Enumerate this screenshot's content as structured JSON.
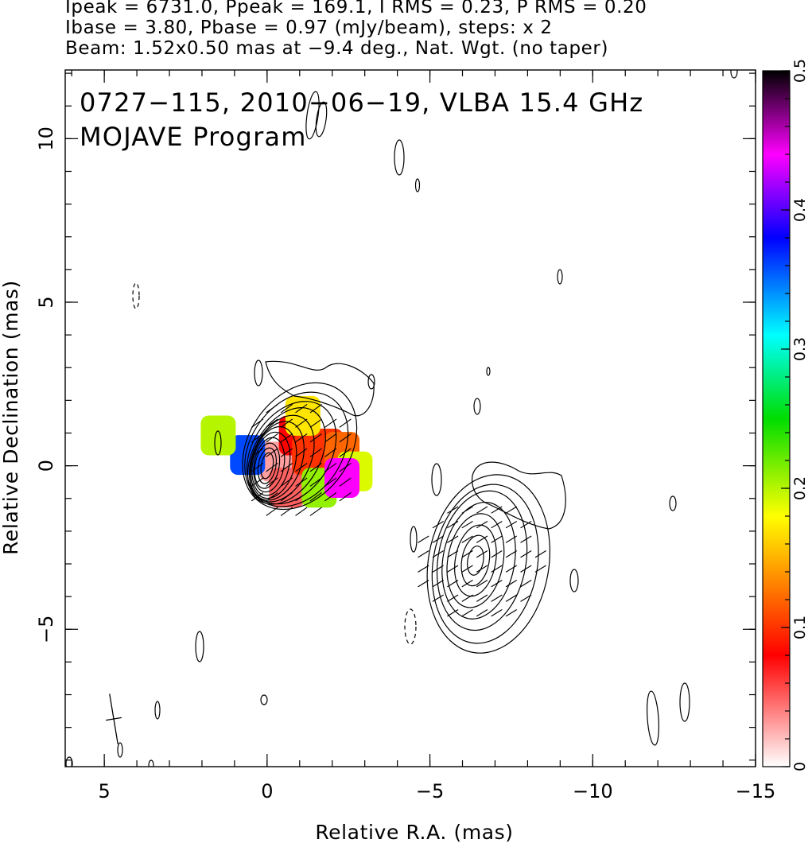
{
  "header": {
    "line1": "Ipeak = 6731.0, Ppeak = 169.1, I RMS = 0.23, P RMS = 0.20",
    "line2": "Ibase = 3.80, Pbase = 0.97 (mJy/beam), steps: x 2",
    "line3": "Beam: 1.52x0.50 mas at −9.4 deg., Nat. Wgt. (no taper)"
  },
  "chart_data": {
    "type": "heatmap",
    "title": "0727−115, 2010−06−19, VLBA 15.4 GHz",
    "subtitle": "MOJAVE Program",
    "xlabel": "Relative R.A. (mas)",
    "ylabel": "Relative Declination (mas)",
    "xlim": [
      6.2,
      -15.0
    ],
    "ylim": [
      -9.2,
      12.1
    ],
    "x_ticks": [
      {
        "value": 5,
        "label": "5"
      },
      {
        "value": 0,
        "label": "0"
      },
      {
        "value": -5,
        "label": "−5"
      },
      {
        "value": -10,
        "label": "−10"
      },
      {
        "value": -15,
        "label": "−15"
      }
    ],
    "y_ticks": [
      {
        "value": 10,
        "label": "10"
      },
      {
        "value": 5,
        "label": "5"
      },
      {
        "value": 0,
        "label": "0"
      },
      {
        "value": -5,
        "label": "−5"
      }
    ],
    "colorbar": {
      "range": [
        0,
        0.5
      ],
      "ticks": [
        {
          "value": 0,
          "label": "0"
        },
        {
          "value": 0.1,
          "label": "0.1"
        },
        {
          "value": 0.2,
          "label": "0.2"
        },
        {
          "value": 0.3,
          "label": "0.3"
        },
        {
          "value": 0.4,
          "label": "0.4"
        },
        {
          "value": 0.5,
          "label": "0.5"
        }
      ],
      "colormap": [
        "#ffffff",
        "#ff0000",
        "#ff8c00",
        "#ffff00",
        "#00dd00",
        "#00ffff",
        "#0000ff",
        "#ff00ff",
        "#000000"
      ]
    },
    "intensity_contours": [
      {
        "component": "core",
        "x": 0.0,
        "y": 0.0,
        "levels": [
          {
            "rx": 2.1,
            "ry": 1.55,
            "angle": 35,
            "dx": -1.0,
            "dy": 0.6
          },
          {
            "rx": 1.9,
            "ry": 1.4,
            "angle": 35,
            "dx": -0.9,
            "dy": 0.5
          },
          {
            "rx": 1.7,
            "ry": 1.2,
            "angle": 33,
            "dx": -0.75,
            "dy": 0.4
          },
          {
            "rx": 1.6,
            "ry": 1.02,
            "angle": 30,
            "dx": -0.6,
            "dy": 0.3
          },
          {
            "rx": 1.4,
            "ry": 0.88,
            "angle": 25,
            "dx": -0.45,
            "dy": 0.22
          },
          {
            "rx": 1.25,
            "ry": 0.76,
            "angle": 20,
            "dx": -0.3,
            "dy": 0.15
          },
          {
            "rx": 1.12,
            "ry": 0.66,
            "angle": 15,
            "dx": -0.2,
            "dy": 0.1
          },
          {
            "rx": 0.98,
            "ry": 0.56,
            "angle": 12,
            "dx": -0.12,
            "dy": 0.06
          },
          {
            "rx": 0.84,
            "ry": 0.46,
            "angle": 10,
            "dx": -0.06,
            "dy": 0.03
          },
          {
            "rx": 0.7,
            "ry": 0.37,
            "angle": 10,
            "dx": 0.0,
            "dy": 0.0
          },
          {
            "rx": 0.55,
            "ry": 0.27,
            "angle": 10,
            "dx": 0.0,
            "dy": 0.0
          },
          {
            "rx": 0.4,
            "ry": 0.18,
            "angle": 10,
            "dx": 0.0,
            "dy": 0.0
          }
        ]
      },
      {
        "component": "jet",
        "x": -6.4,
        "y": -2.9,
        "levels": [
          {
            "rx": 2.75,
            "ry": 1.85,
            "angle": 10,
            "dx": -0.4,
            "dy": -0.1
          },
          {
            "rx": 2.45,
            "ry": 1.6,
            "angle": 10,
            "dx": -0.3,
            "dy": -0.1
          },
          {
            "rx": 2.15,
            "ry": 1.35,
            "angle": 10,
            "dx": -0.2,
            "dy": 0.0
          },
          {
            "rx": 1.8,
            "ry": 1.1,
            "angle": 10,
            "dx": -0.1,
            "dy": 0.0
          },
          {
            "rx": 1.45,
            "ry": 0.85,
            "angle": 10,
            "dx": 0.0,
            "dy": 0.0
          },
          {
            "rx": 1.1,
            "ry": 0.62,
            "angle": 10,
            "dx": 0.0,
            "dy": 0.0
          },
          {
            "rx": 0.78,
            "ry": 0.42,
            "angle": 10,
            "dx": 0.0,
            "dy": 0.0
          },
          {
            "rx": 0.45,
            "ry": 0.24,
            "angle": 10,
            "dx": 0.0,
            "dy": 0.0
          }
        ]
      }
    ],
    "fractional_polarization": [
      {
        "x": -0.3,
        "y": 0.2,
        "value": 0.03
      },
      {
        "x": -0.6,
        "y": -0.6,
        "value": 0.05
      },
      {
        "x": -0.9,
        "y": 1.0,
        "value": 0.08
      },
      {
        "x": -1.3,
        "y": 0.4,
        "value": 0.1
      },
      {
        "x": -1.8,
        "y": 0.6,
        "value": 0.1
      },
      {
        "x": -2.3,
        "y": 0.5,
        "value": 0.12
      },
      {
        "x": -1.1,
        "y": 1.6,
        "value": 0.17
      },
      {
        "x": -1.6,
        "y": -0.6,
        "value": 0.21
      },
      {
        "x": -2.7,
        "y": -0.1,
        "value": 0.19
      },
      {
        "x": 0.6,
        "y": 0.4,
        "value": 0.36
      },
      {
        "x": -2.3,
        "y": -0.3,
        "value": 0.44
      },
      {
        "x": 1.5,
        "y": 1.0,
        "value": 0.2
      }
    ]
  }
}
